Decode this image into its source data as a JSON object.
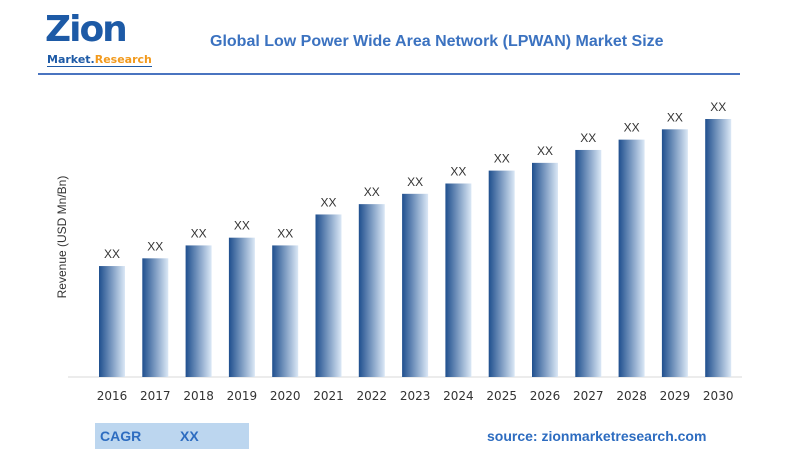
{
  "logo": {
    "main": "Zion",
    "sub_left": "Market.",
    "sub_right": "Research"
  },
  "chart_data": {
    "type": "bar",
    "title": "Global Low Power Wide Area Network (LPWAN) Market Size",
    "ylabel": "Revenue (USD Mn/Bn)",
    "xlabel": "",
    "categories": [
      "2016",
      "2017",
      "2018",
      "2019",
      "2020",
      "2021",
      "2022",
      "2023",
      "2024",
      "2025",
      "2026",
      "2027",
      "2028",
      "2029",
      "2030"
    ],
    "values": [
      43,
      46,
      51,
      54,
      51,
      63,
      67,
      71,
      75,
      80,
      83,
      88,
      92,
      96,
      100
    ],
    "data_labels": [
      "XX",
      "XX",
      "XX",
      "XX",
      "XX",
      "XX",
      "XX",
      "XX",
      "XX",
      "XX",
      "XX",
      "XX",
      "XX",
      "XX",
      "XX"
    ],
    "grid": false,
    "colors": {
      "bar_dark": "#1f4f8e",
      "bar_light": "#dbe8f6",
      "title": "#3b72c0"
    }
  },
  "cagr": {
    "label": "CAGR",
    "value": "XX"
  },
  "source": "source: zionmarketresearch.com"
}
